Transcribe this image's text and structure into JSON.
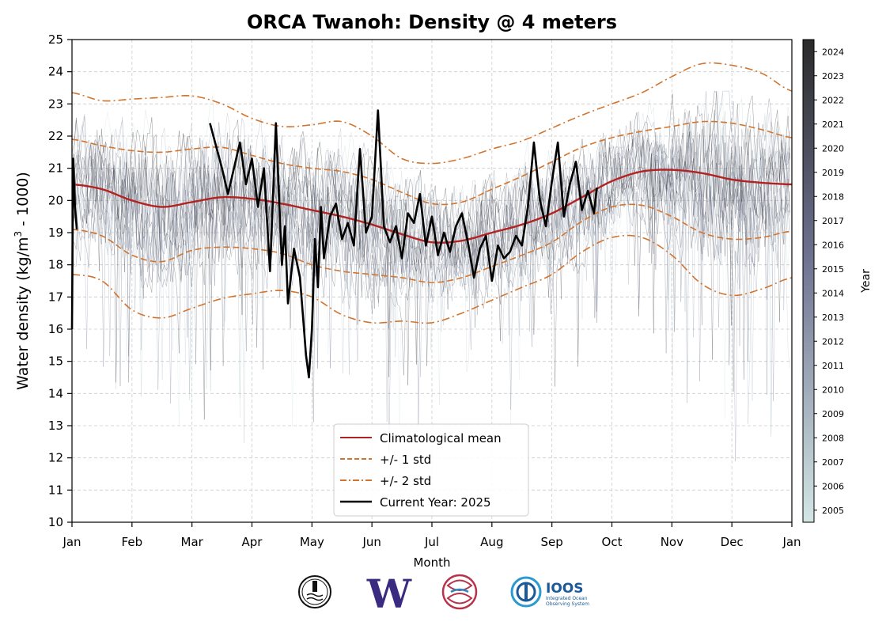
{
  "chart_data": {
    "type": "line",
    "title": "ORCA Twanoh: Density @ 4 meters",
    "xlabel": "Month",
    "ylabel_main": "Water density (kg/m",
    "ylabel_sup": "3",
    "ylabel_tail": " - 1000)",
    "xlim": [
      0,
      12
    ],
    "ylim": [
      10,
      25
    ],
    "x_tick_labels": [
      "Jan",
      "Feb",
      "Mar",
      "Apr",
      "May",
      "Jun",
      "Jul",
      "Aug",
      "Sep",
      "Oct",
      "Nov",
      "Dec",
      "Jan"
    ],
    "y_ticks": [
      10,
      11,
      12,
      13,
      14,
      15,
      16,
      17,
      18,
      19,
      20,
      21,
      22,
      23,
      24,
      25
    ],
    "grid": true,
    "legend": {
      "placement": "lower-center",
      "entries": [
        "Climatological mean",
        "+/- 1 std",
        "+/- 2 std",
        "Current Year: 2025"
      ]
    },
    "colorbar": {
      "label": "Year",
      "ticks": [
        "2005",
        "2006",
        "2007",
        "2008",
        "2009",
        "2010",
        "2011",
        "2012",
        "2013",
        "2014",
        "2015",
        "2016",
        "2017",
        "2018",
        "2019",
        "2020",
        "2021",
        "2022",
        "2023",
        "2024"
      ],
      "color_low": "#d3e6e4",
      "color_mid": "#6e7290",
      "color_high": "#2a2a2a"
    },
    "series": [
      {
        "name": "Climatological mean",
        "style": "solid",
        "color": "#b22222",
        "x": [
          0,
          0.5,
          1,
          1.5,
          2,
          2.5,
          3,
          3.5,
          4,
          4.5,
          5,
          5.5,
          6,
          6.5,
          7,
          7.5,
          8,
          8.5,
          9,
          9.5,
          10,
          10.5,
          11,
          11.5,
          12
        ],
        "values": [
          20.5,
          20.35,
          20.0,
          19.8,
          19.95,
          20.1,
          20.05,
          19.9,
          19.7,
          19.5,
          19.25,
          18.95,
          18.7,
          18.75,
          19.0,
          19.25,
          19.6,
          20.1,
          20.6,
          20.9,
          20.95,
          20.85,
          20.65,
          20.55,
          20.5
        ]
      },
      {
        "name": "+/- 1 std",
        "style": "dashed",
        "color": "#d2742d",
        "x": [
          0,
          0.5,
          1,
          1.5,
          2,
          2.5,
          3,
          3.5,
          4,
          4.5,
          5,
          5.5,
          6,
          6.5,
          7,
          7.5,
          8,
          8.5,
          9,
          9.5,
          10,
          10.5,
          11,
          11.5,
          12
        ],
        "values": [
          21.9,
          21.7,
          21.55,
          21.5,
          21.6,
          21.65,
          21.4,
          21.15,
          21.0,
          20.9,
          20.65,
          20.25,
          19.9,
          19.95,
          20.35,
          20.75,
          21.2,
          21.65,
          21.95,
          22.15,
          22.3,
          22.45,
          22.4,
          22.2,
          21.95
        ]
      },
      {
        "name": "+/- 1 std",
        "style": "dashed",
        "color": "#d2742d",
        "x": [
          0,
          0.5,
          1,
          1.5,
          2,
          2.5,
          3,
          3.5,
          4,
          4.5,
          5,
          5.5,
          6,
          6.5,
          7,
          7.5,
          8,
          8.5,
          9,
          9.5,
          10,
          10.5,
          11,
          11.5,
          12
        ],
        "values": [
          19.1,
          18.9,
          18.3,
          18.1,
          18.45,
          18.55,
          18.5,
          18.35,
          18.0,
          17.8,
          17.7,
          17.6,
          17.45,
          17.6,
          17.95,
          18.3,
          18.7,
          19.35,
          19.8,
          19.85,
          19.5,
          19.0,
          18.8,
          18.85,
          19.05
        ]
      },
      {
        "name": "+/- 2 std",
        "style": "dashdot",
        "color": "#d2742d",
        "x": [
          0,
          0.5,
          1,
          1.5,
          2,
          2.5,
          3,
          3.5,
          4,
          4.5,
          5,
          5.5,
          6,
          6.5,
          7,
          7.5,
          8,
          8.5,
          9,
          9.5,
          10,
          10.5,
          11,
          11.5,
          12
        ],
        "values": [
          23.35,
          23.1,
          23.15,
          23.2,
          23.25,
          23.0,
          22.55,
          22.3,
          22.35,
          22.45,
          22.0,
          21.3,
          21.15,
          21.3,
          21.6,
          21.85,
          22.25,
          22.65,
          23.0,
          23.35,
          23.85,
          24.25,
          24.2,
          23.95,
          23.4
        ]
      },
      {
        "name": "+/- 2 std",
        "style": "dashdot",
        "color": "#d2742d",
        "x": [
          0,
          0.5,
          1,
          1.5,
          2,
          2.5,
          3,
          3.5,
          4,
          4.5,
          5,
          5.5,
          6,
          6.5,
          7,
          7.5,
          8,
          8.5,
          9,
          9.5,
          10,
          10.5,
          11,
          11.5,
          12
        ],
        "values": [
          17.7,
          17.5,
          16.6,
          16.35,
          16.65,
          16.95,
          17.1,
          17.2,
          17.0,
          16.45,
          16.2,
          16.25,
          16.2,
          16.5,
          16.9,
          17.3,
          17.7,
          18.4,
          18.85,
          18.85,
          18.3,
          17.4,
          17.05,
          17.25,
          17.6
        ]
      },
      {
        "name": "Current Year: 2025",
        "style": "solid",
        "color": "#000000",
        "segments": [
          {
            "x": [
              0.0,
              0.02,
              0.05,
              0.08
            ],
            "values": [
              16.0,
              21.3,
              19.8,
              19.1
            ]
          },
          {
            "x": [
              2.3,
              2.5,
              2.6,
              2.8,
              2.9,
              3.0,
              3.1,
              3.2,
              3.3,
              3.4,
              3.5,
              3.55,
              3.6,
              3.7,
              3.8,
              3.9,
              3.95,
              4.0,
              4.05,
              4.1,
              4.15,
              4.2,
              4.3,
              4.4,
              4.5,
              4.6,
              4.7,
              4.8,
              4.9,
              5.0,
              5.1,
              5.2,
              5.3,
              5.4,
              5.5,
              5.6,
              5.7,
              5.8,
              5.9,
              6.0,
              6.1,
              6.2,
              6.3,
              6.4,
              6.5,
              6.6,
              6.7,
              6.8,
              6.9,
              7.0,
              7.1,
              7.2,
              7.3,
              7.4,
              7.5,
              7.6,
              7.7,
              7.8,
              7.9,
              8.0,
              8.1,
              8.2,
              8.3,
              8.4,
              8.5,
              8.6,
              8.7,
              8.75
            ],
            "values": [
              22.4,
              21.0,
              20.2,
              21.8,
              20.5,
              21.3,
              19.8,
              21.0,
              17.8,
              22.4,
              18.0,
              19.2,
              16.8,
              18.5,
              17.6,
              15.2,
              14.5,
              16.0,
              18.8,
              17.3,
              19.8,
              18.2,
              19.5,
              19.9,
              18.8,
              19.3,
              18.6,
              21.6,
              19.0,
              19.5,
              22.8,
              19.2,
              18.7,
              19.2,
              18.2,
              19.6,
              19.3,
              20.2,
              18.6,
              19.5,
              18.3,
              19.0,
              18.4,
              19.2,
              19.6,
              18.7,
              17.6,
              18.5,
              18.9,
              17.5,
              18.6,
              18.2,
              18.4,
              18.9,
              18.6,
              19.8,
              21.8,
              20.0,
              19.2,
              20.6,
              21.8,
              19.5,
              20.5,
              21.2,
              19.7,
              20.3,
              19.6,
              20.4
            ]
          }
        ]
      }
    ]
  },
  "logos": [
    {
      "name": "orca-buoy-logo"
    },
    {
      "name": "uw-w-logo",
      "text": "W",
      "color": "#3a2a80"
    },
    {
      "name": "nanoos-logo"
    },
    {
      "name": "ioos-logo",
      "text": "IOOS",
      "subtext1": "Integrated Ocean",
      "subtext2": "Observing System",
      "color": "#1a5a9a"
    }
  ]
}
